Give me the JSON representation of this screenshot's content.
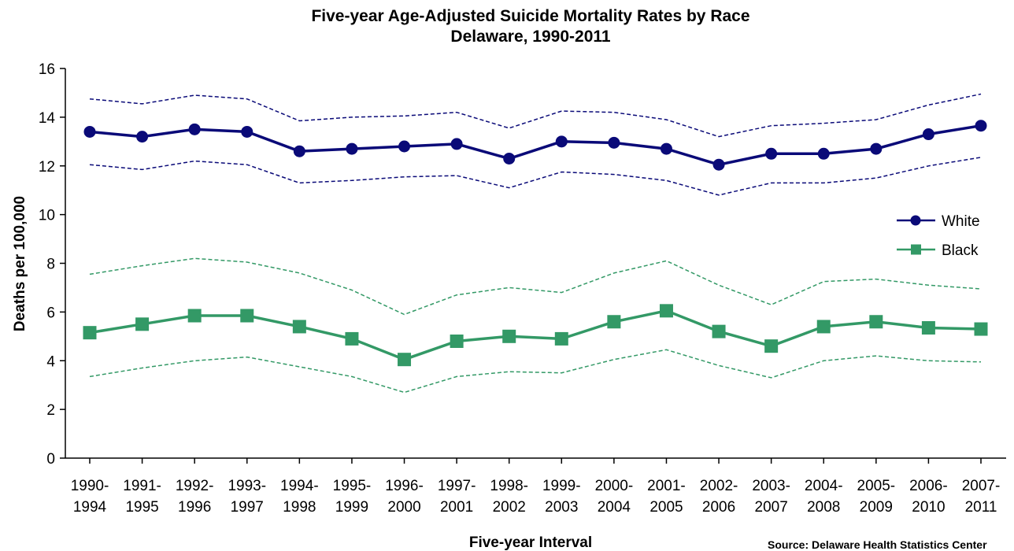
{
  "chart_data": {
    "type": "line",
    "title": "Five-year Age-Adjusted Suicide Mortality Rates by Race",
    "subtitle": "Delaware, 1990-2011",
    "xlabel": "Five-year Interval",
    "ylabel": "Deaths per 100,000",
    "ylim": [
      0,
      16
    ],
    "yticks": [
      "0",
      "2",
      "4",
      "6",
      "8",
      "10",
      "12",
      "14",
      "16"
    ],
    "grid": false,
    "legend_position": "right",
    "categories": [
      [
        "1990-",
        "1994"
      ],
      [
        "1991-",
        "1995"
      ],
      [
        "1992-",
        "1996"
      ],
      [
        "1993-",
        "1997"
      ],
      [
        "1994-",
        "1998"
      ],
      [
        "1995-",
        "1999"
      ],
      [
        "1996-",
        "2000"
      ],
      [
        "1997-",
        "2001"
      ],
      [
        "1998-",
        "2002"
      ],
      [
        "1999-",
        "2003"
      ],
      [
        "2000-",
        "2004"
      ],
      [
        "2001-",
        "2005"
      ],
      [
        "2002-",
        "2006"
      ],
      [
        "2003-",
        "2007"
      ],
      [
        "2004-",
        "2008"
      ],
      [
        "2005-",
        "2009"
      ],
      [
        "2006-",
        "2010"
      ],
      [
        "2007-",
        "2011"
      ]
    ],
    "series": [
      {
        "name": "White",
        "color": "#0a0a78",
        "marker": "circle",
        "values": [
          13.4,
          13.2,
          13.5,
          13.4,
          12.6,
          12.7,
          12.8,
          12.9,
          12.3,
          13.0,
          12.95,
          12.7,
          12.05,
          12.5,
          12.5,
          12.7,
          13.3,
          13.65
        ],
        "upper": [
          14.75,
          14.55,
          14.9,
          14.75,
          13.85,
          14.0,
          14.05,
          14.2,
          13.55,
          14.25,
          14.2,
          13.9,
          13.2,
          13.65,
          13.75,
          13.9,
          14.5,
          14.95
        ],
        "lower": [
          12.05,
          11.85,
          12.2,
          12.05,
          11.3,
          11.4,
          11.55,
          11.6,
          11.1,
          11.75,
          11.65,
          11.4,
          10.8,
          11.3,
          11.3,
          11.5,
          12.0,
          12.35
        ]
      },
      {
        "name": "Black",
        "color": "#339966",
        "marker": "square",
        "values": [
          5.15,
          5.5,
          5.85,
          5.85,
          5.4,
          4.9,
          4.05,
          4.8,
          5.0,
          4.9,
          5.6,
          6.05,
          5.2,
          4.6,
          5.4,
          5.6,
          5.35,
          5.3
        ],
        "upper": [
          7.55,
          7.9,
          8.2,
          8.05,
          7.6,
          6.9,
          5.9,
          6.7,
          7.0,
          6.8,
          7.6,
          8.1,
          7.1,
          6.3,
          7.25,
          7.35,
          7.1,
          6.95
        ],
        "lower": [
          3.35,
          3.7,
          4.0,
          4.15,
          3.75,
          3.35,
          2.7,
          3.35,
          3.55,
          3.5,
          4.05,
          4.45,
          3.8,
          3.3,
          4.0,
          4.2,
          4.0,
          3.95
        ]
      }
    ],
    "source": "Source:   Delaware Health Statistics Center"
  }
}
